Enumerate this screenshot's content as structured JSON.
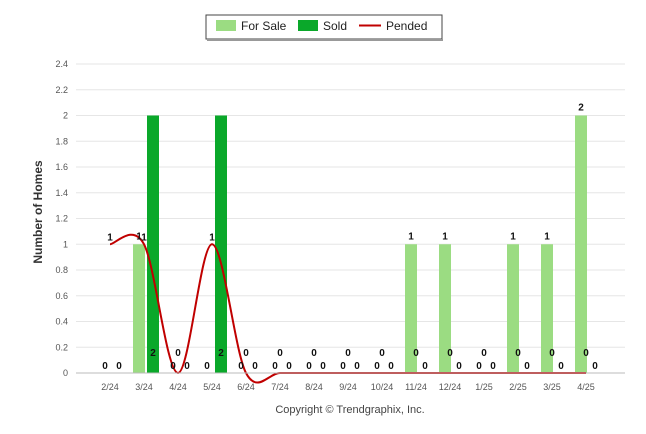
{
  "legend": {
    "for_sale": "For Sale",
    "sold": "Sold",
    "pended": "Pended"
  },
  "copyright": "Copyright © Trendgraphix, Inc.",
  "colors": {
    "for_sale": "#9bdc82",
    "sold": "#0aa82a",
    "pended": "#c00000",
    "grid": "#e6e6e6"
  },
  "chart_data": {
    "type": "bar",
    "categories": [
      "2/24",
      "3/24",
      "4/24",
      "5/24",
      "6/24",
      "7/24",
      "8/24",
      "9/24",
      "10/24",
      "11/24",
      "12/24",
      "1/25",
      "2/25",
      "3/25",
      "4/25"
    ],
    "series": [
      {
        "name": "For Sale",
        "type": "bar",
        "values": [
          0,
          1,
          0,
          0,
          0,
          0,
          0,
          0,
          0,
          1,
          1,
          0,
          1,
          1,
          2
        ]
      },
      {
        "name": "Sold",
        "type": "bar",
        "values": [
          0,
          2,
          0,
          2,
          0,
          0,
          0,
          0,
          0,
          0,
          0,
          0,
          0,
          0,
          0
        ]
      },
      {
        "name": "Pended",
        "type": "line",
        "values": [
          1,
          1,
          0,
          1,
          0,
          0,
          0,
          0,
          0,
          0,
          0,
          0,
          0,
          0,
          0
        ]
      }
    ],
    "ylabel": "Number of Homes",
    "xlabel": "",
    "ylim": [
      0,
      2.4
    ],
    "yticks": [
      "0",
      "0.2",
      "0.4",
      "0.6",
      "0.8",
      "1",
      "1.2",
      "1.4",
      "1.6",
      "1.8",
      "2",
      "2.2",
      "2.4"
    ],
    "grid": true,
    "legend_position": "top-center"
  }
}
